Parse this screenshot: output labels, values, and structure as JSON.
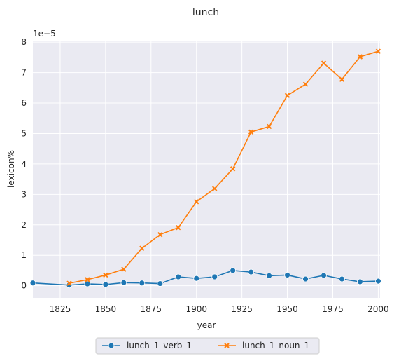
{
  "chart_data": {
    "type": "line",
    "title": "lunch",
    "xlabel": "year",
    "ylabel": "lexicon%",
    "y_scale_label": "1e−5",
    "xlim": [
      1810,
      2001
    ],
    "ylim": [
      -0.4,
      8.05
    ],
    "xticks": [
      1825,
      1850,
      1875,
      1900,
      1925,
      1950,
      1975,
      2000
    ],
    "yticks": [
      0,
      1,
      2,
      3,
      4,
      5,
      6,
      7,
      8
    ],
    "grid": true,
    "legend_position": "bottom-center",
    "plot_background": "#eaeaf2",
    "series": [
      {
        "name": "lunch_1_verb_1",
        "color": "#1f77b4",
        "marker": "circle",
        "x": [
          1810,
          1830,
          1840,
          1850,
          1860,
          1870,
          1880,
          1890,
          1900,
          1910,
          1920,
          1930,
          1940,
          1950,
          1960,
          1970,
          1980,
          1990,
          2000
        ],
        "y": [
          0.09,
          0.02,
          0.06,
          0.04,
          0.1,
          0.09,
          0.07,
          0.29,
          0.24,
          0.29,
          0.5,
          0.45,
          0.33,
          0.35,
          0.22,
          0.34,
          0.22,
          0.13,
          0.15
        ]
      },
      {
        "name": "lunch_1_noun_1",
        "color": "#ff7f0e",
        "marker": "x",
        "x": [
          1830,
          1840,
          1850,
          1860,
          1870,
          1880,
          1890,
          1900,
          1910,
          1920,
          1930,
          1940,
          1950,
          1960,
          1970,
          1980,
          1990,
          2000
        ],
        "y": [
          0.08,
          0.2,
          0.35,
          0.54,
          1.23,
          1.68,
          1.91,
          2.76,
          3.19,
          3.84,
          5.05,
          5.23,
          6.25,
          6.62,
          7.31,
          6.78,
          7.52,
          7.7
        ]
      }
    ]
  }
}
